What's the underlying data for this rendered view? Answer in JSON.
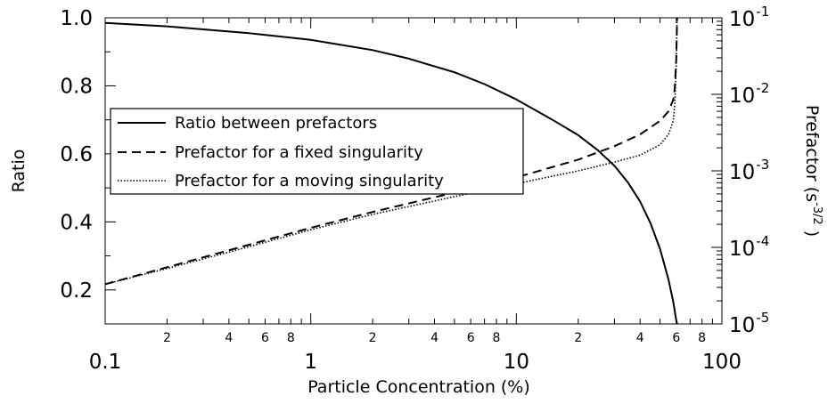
{
  "chart_data": {
    "type": "line",
    "xlabel": "Particle Concentration (%)",
    "ylabel": "Ratio",
    "y2label": "Prefactor (s",
    "y2label_exp": "-3/2",
    "y2label_close": ")",
    "x_scale": "log",
    "xlim": [
      0.1,
      100
    ],
    "ylim": [
      0.1,
      1.0
    ],
    "y2_scale": "log",
    "y2lim": [
      1e-05,
      0.1
    ],
    "grid": false,
    "legend_position": "left-center",
    "x_major_ticks": [
      {
        "value": 0.1,
        "label": "0.1"
      },
      {
        "value": 1,
        "label": "1"
      },
      {
        "value": 10,
        "label": "10"
      },
      {
        "value": 100,
        "label": "100"
      }
    ],
    "x_minor_ticks": [
      {
        "value": 0.2,
        "label": "2"
      },
      {
        "value": 0.4,
        "label": "4"
      },
      {
        "value": 0.6,
        "label": "6"
      },
      {
        "value": 0.8,
        "label": "8"
      },
      {
        "value": 2,
        "label": "2"
      },
      {
        "value": 4,
        "label": "4"
      },
      {
        "value": 6,
        "label": "6"
      },
      {
        "value": 8,
        "label": "8"
      },
      {
        "value": 20,
        "label": "2"
      },
      {
        "value": 40,
        "label": "4"
      },
      {
        "value": 60,
        "label": "6"
      },
      {
        "value": 80,
        "label": "8"
      }
    ],
    "x_minor_unlabeled": [
      0.3,
      0.5,
      0.7,
      0.9,
      3,
      5,
      7,
      9,
      30,
      50,
      70,
      90
    ],
    "y_ticks": [
      {
        "value": 0.2,
        "label": "0.2"
      },
      {
        "value": 0.4,
        "label": "0.4"
      },
      {
        "value": 0.6,
        "label": "0.6"
      },
      {
        "value": 0.8,
        "label": "0.8"
      },
      {
        "value": 1.0,
        "label": "1.0"
      }
    ],
    "y_minor_ticks": [
      0.3,
      0.5,
      0.7,
      0.9
    ],
    "y2_ticks": [
      {
        "value": 1e-05,
        "base": "10",
        "exp": "-5"
      },
      {
        "value": 0.0001,
        "base": "10",
        "exp": "-4"
      },
      {
        "value": 0.001,
        "base": "10",
        "exp": "-3"
      },
      {
        "value": 0.01,
        "base": "10",
        "exp": "-2"
      },
      {
        "value": 0.1,
        "base": "10",
        "exp": "-1"
      }
    ],
    "series": [
      {
        "name": "Ratio between prefactors",
        "axis": "left",
        "style": "solid",
        "x": [
          0.1,
          0.2,
          0.5,
          1,
          2,
          3,
          5,
          7,
          10,
          15,
          20,
          25,
          30,
          35,
          40,
          45,
          50,
          55,
          58,
          60,
          60.5
        ],
        "y": [
          0.985,
          0.975,
          0.955,
          0.935,
          0.905,
          0.88,
          0.84,
          0.805,
          0.76,
          0.7,
          0.655,
          0.61,
          0.565,
          0.515,
          0.46,
          0.395,
          0.32,
          0.23,
          0.165,
          0.11,
          0.1
        ]
      },
      {
        "name": "Prefactor for a fixed singularity",
        "axis": "right",
        "style": "dashed",
        "x": [
          0.1,
          0.2,
          0.5,
          1,
          2,
          5,
          10,
          20,
          30,
          40,
          50,
          55,
          58,
          59,
          60,
          60.5
        ],
        "y": [
          3.3e-05,
          5.5e-05,
          0.000108,
          0.00018,
          0.00029,
          0.00052,
          0.00082,
          0.0014,
          0.0021,
          0.003,
          0.0045,
          0.006,
          0.0085,
          0.012,
          0.03,
          0.1
        ]
      },
      {
        "name": "Prefactor for a moving singularity",
        "axis": "right",
        "style": "dotted",
        "x": [
          0.1,
          0.2,
          0.5,
          1,
          2,
          5,
          10,
          20,
          30,
          40,
          50,
          55,
          58,
          59,
          60,
          60.5
        ],
        "y": [
          3.3e-05,
          5.3e-05,
          0.000102,
          0.00017,
          0.00027,
          0.00046,
          0.00068,
          0.001,
          0.0013,
          0.0016,
          0.0022,
          0.003,
          0.0045,
          0.0075,
          0.025,
          0.1
        ]
      }
    ]
  }
}
